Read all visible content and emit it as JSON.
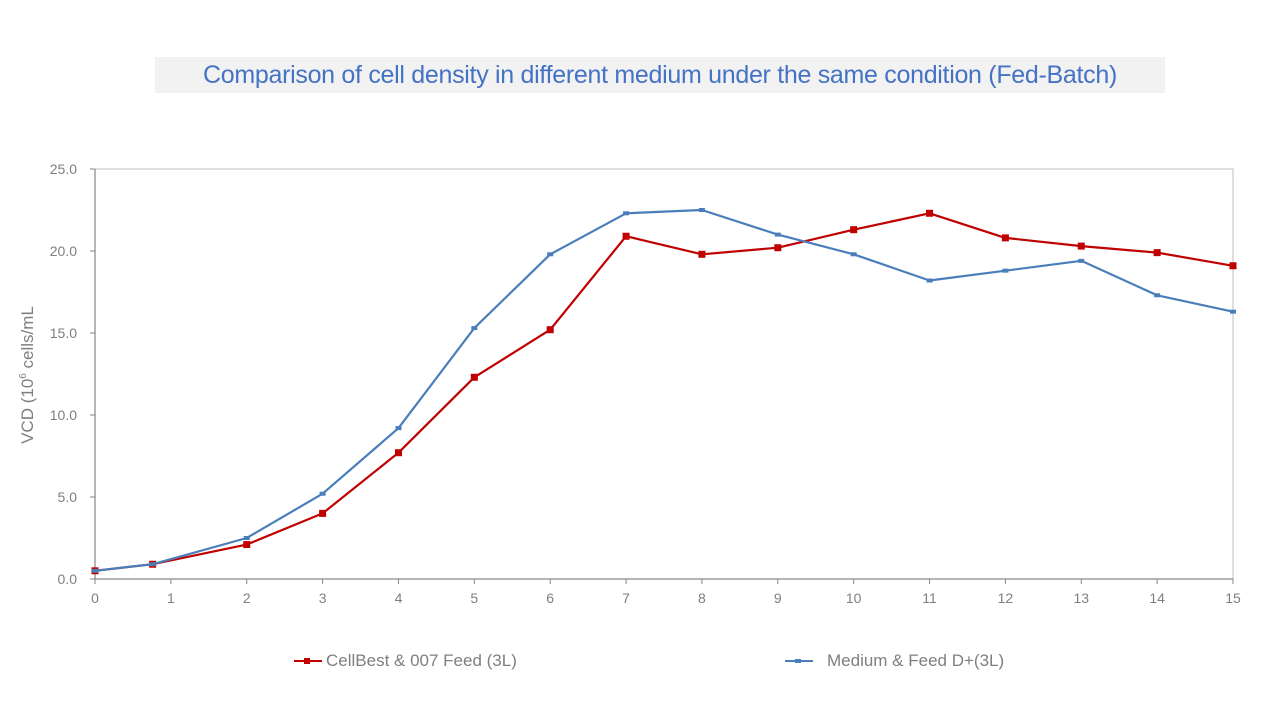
{
  "chart_data": {
    "type": "line",
    "title": "Comparison of cell density in different medium under the same condition (Fed-Batch)",
    "xlabel": "",
    "ylabel": "VCD (10",
    "ylabel_sup": "6",
    "ylabel_rest": " cells/mL",
    "xlim": [
      0,
      15
    ],
    "ylim": [
      0,
      25
    ],
    "x_ticks": [
      "0",
      "1",
      "2",
      "3",
      "4",
      "5",
      "6",
      "7",
      "8",
      "9",
      "10",
      "11",
      "12",
      "13",
      "14",
      "15"
    ],
    "y_ticks": [
      "0.0",
      "5.0",
      "10.0",
      "15.0",
      "20.0",
      "25.0"
    ],
    "grid": false,
    "legend_position": "bottom",
    "series": [
      {
        "name": "CellBest & 007 Feed (3L)",
        "color": "#c00000",
        "marker": "square",
        "x": [
          0,
          0.76,
          2,
          3,
          4,
          5,
          6,
          7,
          8,
          9,
          10,
          11,
          12,
          13,
          14,
          15
        ],
        "y": [
          0.5,
          0.9,
          2.1,
          4.0,
          7.7,
          12.3,
          15.2,
          20.9,
          19.8,
          20.2,
          21.3,
          22.3,
          20.8,
          20.3,
          19.9,
          19.1
        ]
      },
      {
        "name": "Medium & Feed D+(3L)",
        "color": "#4a7ebb",
        "marker": "dash",
        "x": [
          0,
          0.76,
          2,
          3,
          4,
          5,
          6,
          7,
          8,
          9,
          10,
          11,
          12,
          13,
          14,
          15
        ],
        "y": [
          0.5,
          0.9,
          2.5,
          5.2,
          9.2,
          15.3,
          19.8,
          22.3,
          22.5,
          21.0,
          19.8,
          18.2,
          18.8,
          19.4,
          17.3,
          16.3
        ]
      }
    ]
  }
}
